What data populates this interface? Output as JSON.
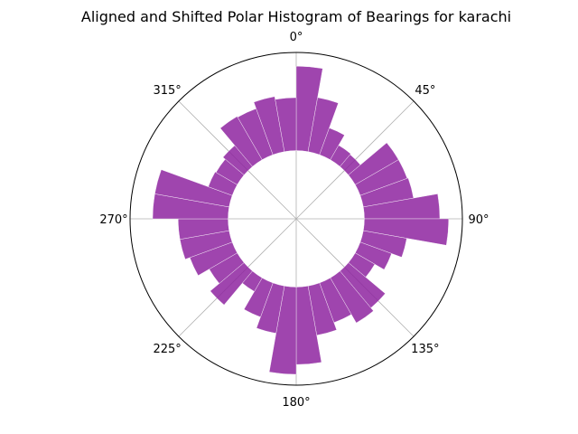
{
  "chart_data": {
    "type": "bar",
    "projection": "polar",
    "title": "Aligned and Shifted Polar Histogram of Bearings for karachi",
    "theta_zero": "N",
    "theta_direction": "clockwise",
    "bin_width_deg": 10,
    "angle_tick_labels": [
      "0°",
      "45°",
      "90°",
      "135°",
      "180°",
      "225°",
      "270°",
      "315°"
    ],
    "angle_ticks_deg": [
      0,
      45,
      90,
      135,
      180,
      225,
      270,
      315
    ],
    "radial_grid": true,
    "inner_hole_fraction": 0.41,
    "bar_color": "#8e24a0",
    "bar_opacity": 0.85,
    "bins": [
      {
        "start": 0,
        "value": 0.86
      },
      {
        "start": 10,
        "value": 0.56
      },
      {
        "start": 20,
        "value": 0.29
      },
      {
        "start": 30,
        "value": 0.17
      },
      {
        "start": 40,
        "value": 0.16
      },
      {
        "start": 50,
        "value": 0.51
      },
      {
        "start": 60,
        "value": 0.51
      },
      {
        "start": 70,
        "value": 0.52
      },
      {
        "start": 80,
        "value": 0.77
      },
      {
        "start": 90,
        "value": 0.86
      },
      {
        "start": 100,
        "value": 0.45
      },
      {
        "start": 110,
        "value": 0.34
      },
      {
        "start": 120,
        "value": 0.23
      },
      {
        "start": 130,
        "value": 0.49
      },
      {
        "start": 140,
        "value": 0.53
      },
      {
        "start": 150,
        "value": 0.43
      },
      {
        "start": 160,
        "value": 0.51
      },
      {
        "start": 170,
        "value": 0.79
      },
      {
        "start": 180,
        "value": 0.89
      },
      {
        "start": 190,
        "value": 0.49
      },
      {
        "start": 200,
        "value": 0.37
      },
      {
        "start": 210,
        "value": 0.16
      },
      {
        "start": 220,
        "value": 0.45
      },
      {
        "start": 230,
        "value": 0.33
      },
      {
        "start": 240,
        "value": 0.46
      },
      {
        "start": 250,
        "value": 0.51
      },
      {
        "start": 260,
        "value": 0.51
      },
      {
        "start": 270,
        "value": 0.77
      },
      {
        "start": 280,
        "value": 0.77
      },
      {
        "start": 290,
        "value": 0.26
      },
      {
        "start": 300,
        "value": 0.25
      },
      {
        "start": 310,
        "value": 0.28
      },
      {
        "start": 320,
        "value": 0.51
      },
      {
        "start": 330,
        "value": 0.5
      },
      {
        "start": 340,
        "value": 0.57
      },
      {
        "start": 350,
        "value": 0.54
      }
    ],
    "rlim": [
      0,
      1
    ]
  }
}
